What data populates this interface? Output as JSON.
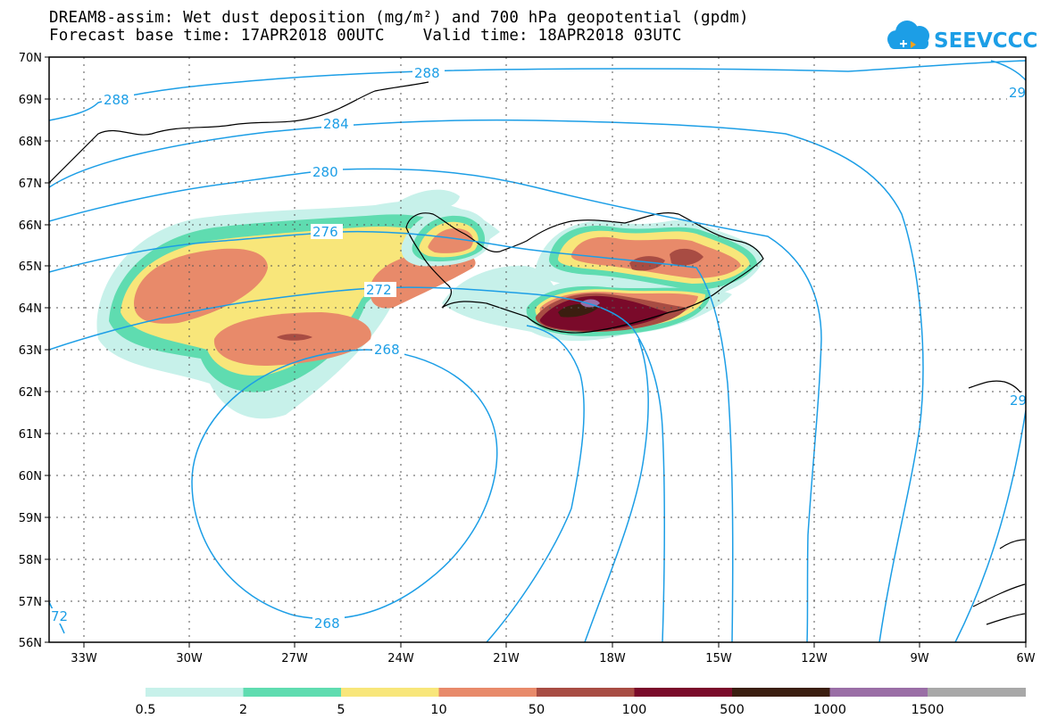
{
  "title": {
    "line1": "DREAM8-assim: Wet dust deposition (mg/m²) and 700 hPa geopotential (gpdm)",
    "line2": "Forecast base time: 17APR2018 00UTC    Valid time: 18APR2018 03UTC"
  },
  "logo": {
    "text": "SEEVCCC",
    "color": "#1c9ee6"
  },
  "axes": {
    "lon_labels": [
      "33W",
      "30W",
      "27W",
      "24W",
      "21W",
      "18W",
      "15W",
      "12W",
      "9W",
      "6W"
    ],
    "lat_labels": [
      "70N",
      "69N",
      "68N",
      "67N",
      "66N",
      "65N",
      "64N",
      "63N",
      "62N",
      "61N",
      "60N",
      "59N",
      "58N",
      "57N",
      "56N"
    ]
  },
  "contour_labels": {
    "c288a": "288",
    "c288b": "288",
    "c284": "284",
    "c280": "280",
    "c276": "276",
    "c272": "272",
    "c268a": "268",
    "c268b": "268",
    "c29a": "29",
    "c29b": "29",
    "c72": "72"
  },
  "colorbar": {
    "levels": [
      "0.5",
      "2",
      "5",
      "10",
      "50",
      "100",
      "500",
      "1000",
      "1500"
    ],
    "colors": [
      "#c7f1ea",
      "#5fdcb0",
      "#f8e67a",
      "#e88a6a",
      "#a84c43",
      "#7a0a2a",
      "#3b1e10",
      "#9a6ea6",
      "#a8a8a8"
    ]
  },
  "colors": {
    "contour": "#1c9ee6",
    "grid": "#555555"
  }
}
